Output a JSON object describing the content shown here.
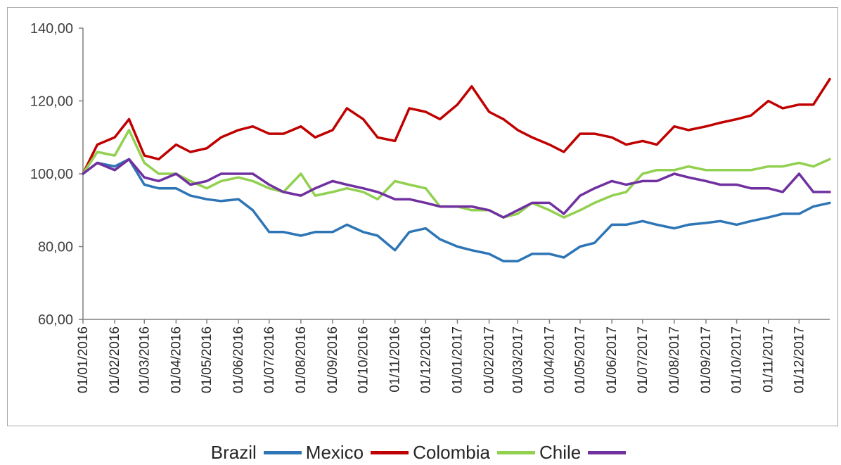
{
  "chart_data": {
    "type": "line",
    "title": "",
    "xlabel": "",
    "ylabel": "",
    "ylim": [
      60,
      140
    ],
    "y_ticks": [
      "60,00",
      "80,00",
      "100,00",
      "120,00",
      "140,00"
    ],
    "y_tick_values": [
      60,
      80,
      100,
      120,
      140
    ],
    "x_ticks": [
      "01/01/2016",
      "01/02/2016",
      "01/03/2016",
      "01/04/2016",
      "01/05/2016",
      "01/06/2016",
      "01/07/2016",
      "01/08/2016",
      "01/09/2016",
      "01/10/2016",
      "01/11/2016",
      "01/12/2016",
      "01/01/2017",
      "01/02/2017",
      "01/03/2017",
      "01/04/2017",
      "01/05/2017",
      "01/06/2017",
      "01/07/2017",
      "01/08/2017",
      "01/09/2017",
      "01/10/2017",
      "01/11/2017",
      "01/12/2017"
    ],
    "x_range": [
      "01/01/2016",
      "31/12/2017"
    ],
    "legend_position": "bottom",
    "grid": false,
    "series": [
      {
        "name": "Brazil",
        "color": "#2e75b6",
        "x": [
          "01/01/2016",
          "15/01/2016",
          "01/02/2016",
          "15/02/2016",
          "01/03/2016",
          "15/03/2016",
          "01/04/2016",
          "15/04/2016",
          "01/05/2016",
          "15/05/2016",
          "01/06/2016",
          "15/06/2016",
          "01/07/2016",
          "15/07/2016",
          "01/08/2016",
          "15/08/2016",
          "01/09/2016",
          "15/09/2016",
          "01/10/2016",
          "15/10/2016",
          "01/11/2016",
          "15/11/2016",
          "01/12/2016",
          "15/12/2016",
          "01/01/2017",
          "15/01/2017",
          "01/02/2017",
          "15/02/2017",
          "01/03/2017",
          "15/03/2017",
          "01/04/2017",
          "15/04/2017",
          "01/05/2017",
          "15/05/2017",
          "01/06/2017",
          "15/06/2017",
          "01/07/2017",
          "15/07/2017",
          "01/08/2017",
          "15/08/2017",
          "01/09/2017",
          "15/09/2017",
          "01/10/2017",
          "15/10/2017",
          "01/11/2017",
          "15/11/2017",
          "01/12/2017",
          "15/12/2017",
          "31/12/2017"
        ],
        "values": [
          100,
          103,
          102,
          104,
          97,
          96,
          96,
          94,
          93,
          92.5,
          93,
          90,
          84,
          84,
          83,
          84,
          84,
          86,
          84,
          83,
          79,
          84,
          85,
          82,
          80,
          79,
          78,
          76,
          76,
          78,
          78,
          77,
          80,
          81,
          86,
          86,
          87,
          86,
          85,
          86,
          86.5,
          87,
          86,
          87,
          88,
          89,
          89,
          91,
          92
        ]
      },
      {
        "name": "Mexico",
        "color": "#c00000",
        "x": [
          "01/01/2016",
          "15/01/2016",
          "01/02/2016",
          "15/02/2016",
          "01/03/2016",
          "15/03/2016",
          "01/04/2016",
          "15/04/2016",
          "01/05/2016",
          "15/05/2016",
          "01/06/2016",
          "15/06/2016",
          "01/07/2016",
          "15/07/2016",
          "01/08/2016",
          "15/08/2016",
          "01/09/2016",
          "15/09/2016",
          "01/10/2016",
          "15/10/2016",
          "01/11/2016",
          "15/11/2016",
          "01/12/2016",
          "15/12/2016",
          "01/01/2017",
          "15/01/2017",
          "01/02/2017",
          "15/02/2017",
          "01/03/2017",
          "15/03/2017",
          "01/04/2017",
          "15/04/2017",
          "01/05/2017",
          "15/05/2017",
          "01/06/2017",
          "15/06/2017",
          "01/07/2017",
          "15/07/2017",
          "01/08/2017",
          "15/08/2017",
          "01/09/2017",
          "15/09/2017",
          "01/10/2017",
          "15/10/2017",
          "01/11/2017",
          "15/11/2017",
          "01/12/2017",
          "15/12/2017",
          "31/12/2017"
        ],
        "values": [
          100,
          108,
          110,
          115,
          105,
          104,
          108,
          106,
          107,
          110,
          112,
          113,
          111,
          111,
          113,
          110,
          112,
          118,
          115,
          110,
          109,
          118,
          117,
          115,
          119,
          124,
          117,
          115,
          112,
          110,
          108,
          106,
          111,
          111,
          110,
          108,
          109,
          108,
          113,
          112,
          113,
          114,
          115,
          116,
          120,
          118,
          119,
          119,
          126
        ]
      },
      {
        "name": "Colombia",
        "color": "#92d050",
        "x": [
          "01/01/2016",
          "15/01/2016",
          "01/02/2016",
          "15/02/2016",
          "01/03/2016",
          "15/03/2016",
          "01/04/2016",
          "15/04/2016",
          "01/05/2016",
          "15/05/2016",
          "01/06/2016",
          "15/06/2016",
          "01/07/2016",
          "15/07/2016",
          "01/08/2016",
          "15/08/2016",
          "01/09/2016",
          "15/09/2016",
          "01/10/2016",
          "15/10/2016",
          "01/11/2016",
          "15/11/2016",
          "01/12/2016",
          "15/12/2016",
          "01/01/2017",
          "15/01/2017",
          "01/02/2017",
          "15/02/2017",
          "01/03/2017",
          "15/03/2017",
          "01/04/2017",
          "15/04/2017",
          "01/05/2017",
          "15/05/2017",
          "01/06/2017",
          "15/06/2017",
          "01/07/2017",
          "15/07/2017",
          "01/08/2017",
          "15/08/2017",
          "01/09/2017",
          "15/09/2017",
          "01/10/2017",
          "15/10/2017",
          "01/11/2017",
          "15/11/2017",
          "01/12/2017",
          "15/12/2017",
          "31/12/2017"
        ],
        "values": [
          100,
          106,
          105,
          112,
          103,
          100,
          100,
          98,
          96,
          98,
          99,
          98,
          96,
          95,
          100,
          94,
          95,
          96,
          95,
          93,
          98,
          97,
          96,
          91,
          91,
          90,
          90,
          88,
          89,
          92,
          90,
          88,
          90,
          92,
          94,
          95,
          100,
          101,
          101,
          102,
          101,
          101,
          101,
          101,
          102,
          102,
          103,
          102,
          104
        ]
      },
      {
        "name": "Chile",
        "color": "#7030a0",
        "x": [
          "01/01/2016",
          "15/01/2016",
          "01/02/2016",
          "15/02/2016",
          "01/03/2016",
          "15/03/2016",
          "01/04/2016",
          "15/04/2016",
          "01/05/2016",
          "15/05/2016",
          "01/06/2016",
          "15/06/2016",
          "01/07/2016",
          "15/07/2016",
          "01/08/2016",
          "15/08/2016",
          "01/09/2016",
          "15/09/2016",
          "01/10/2016",
          "15/10/2016",
          "01/11/2016",
          "15/11/2016",
          "01/12/2016",
          "15/12/2016",
          "01/01/2017",
          "15/01/2017",
          "01/02/2017",
          "15/02/2017",
          "01/03/2017",
          "15/03/2017",
          "01/04/2017",
          "15/04/2017",
          "01/05/2017",
          "15/05/2017",
          "01/06/2017",
          "15/06/2017",
          "01/07/2017",
          "15/07/2017",
          "01/08/2017",
          "15/08/2017",
          "01/09/2017",
          "15/09/2017",
          "01/10/2017",
          "15/10/2017",
          "01/11/2017",
          "15/11/2017",
          "01/12/2017",
          "15/12/2017",
          "31/12/2017"
        ],
        "values": [
          100,
          103,
          101,
          104,
          99,
          98,
          100,
          97,
          98,
          100,
          100,
          100,
          97,
          95,
          94,
          96,
          98,
          97,
          96,
          95,
          93,
          93,
          92,
          91,
          91,
          91,
          90,
          88,
          90,
          92,
          92,
          89,
          94,
          96,
          98,
          97,
          98,
          98,
          100,
          99,
          98,
          97,
          97,
          96,
          96,
          95,
          100,
          95,
          95
        ]
      }
    ]
  },
  "legend_labels": [
    "Brazil",
    "Mexico",
    "Colombia",
    "Chile"
  ]
}
